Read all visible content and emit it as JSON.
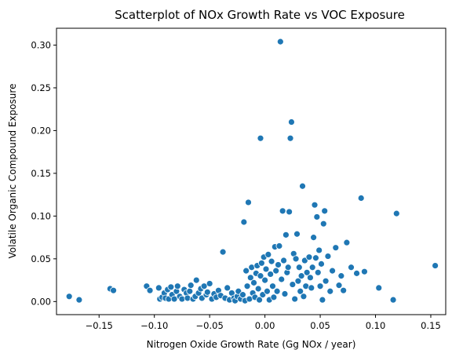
{
  "chart_data": {
    "type": "scatter",
    "title": "Scatterplot of NOx Growth Rate vs VOC Exposure",
    "xlabel": "Nitrogen Oxide Growth Rate (Gg NOx / year)",
    "ylabel": "Volatile Organic Compound Exposure",
    "xlim": [
      -0.1885,
      0.1635
    ],
    "ylim": [
      -0.0153,
      0.3197
    ],
    "xticks": [
      {
        "value": -0.15,
        "label": "−0.15"
      },
      {
        "value": -0.1,
        "label": "−0.10"
      },
      {
        "value": -0.05,
        "label": "−0.05"
      },
      {
        "value": 0.0,
        "label": "0.00"
      },
      {
        "value": 0.05,
        "label": "0.05"
      },
      {
        "value": 0.1,
        "label": "0.10"
      },
      {
        "value": 0.15,
        "label": "0.15"
      }
    ],
    "yticks": [
      {
        "value": 0.0,
        "label": "0.00"
      },
      {
        "value": 0.05,
        "label": "0.05"
      },
      {
        "value": 0.1,
        "label": "0.10"
      },
      {
        "value": 0.15,
        "label": "0.15"
      },
      {
        "value": 0.2,
        "label": "0.20"
      },
      {
        "value": 0.25,
        "label": "0.25"
      },
      {
        "value": 0.3,
        "label": "0.30"
      }
    ],
    "grid": false,
    "point_color": "#1f77b4",
    "points": [
      [
        -0.177,
        0.006
      ],
      [
        -0.168,
        0.002
      ],
      [
        -0.14,
        0.015
      ],
      [
        -0.137,
        0.013
      ],
      [
        -0.107,
        0.018
      ],
      [
        -0.104,
        0.013
      ],
      [
        -0.096,
        0.016
      ],
      [
        -0.095,
        0.003
      ],
      [
        -0.093,
        0.005
      ],
      [
        -0.091,
        0.01
      ],
      [
        -0.09,
        0.004
      ],
      [
        -0.088,
        0.014
      ],
      [
        -0.087,
        0.003
      ],
      [
        -0.085,
        0.017
      ],
      [
        -0.084,
        0.008
      ],
      [
        -0.082,
        0.003
      ],
      [
        -0.08,
        0.012
      ],
      [
        -0.079,
        0.018
      ],
      [
        -0.077,
        0.006
      ],
      [
        -0.075,
        0.003
      ],
      [
        -0.073,
        0.014
      ],
      [
        -0.071,
        0.01
      ],
      [
        -0.07,
        0.004
      ],
      [
        -0.068,
        0.012
      ],
      [
        -0.067,
        0.019
      ],
      [
        -0.065,
        0.003
      ],
      [
        -0.063,
        0.006
      ],
      [
        -0.062,
        0.025
      ],
      [
        -0.06,
        0.01
      ],
      [
        -0.058,
        0.015
      ],
      [
        -0.057,
        0.004
      ],
      [
        -0.055,
        0.018
      ],
      [
        -0.053,
        0.008
      ],
      [
        -0.052,
        0.011
      ],
      [
        -0.05,
        0.021
      ],
      [
        -0.048,
        0.003
      ],
      [
        -0.046,
        0.009
      ],
      [
        -0.044,
        0.005
      ],
      [
        -0.042,
        0.013
      ],
      [
        -0.04,
        0.007
      ],
      [
        -0.038,
        0.058
      ],
      [
        -0.036,
        0.004
      ],
      [
        -0.034,
        0.016
      ],
      [
        -0.032,
        0.002
      ],
      [
        -0.03,
        0.01
      ],
      [
        -0.028,
        0.004
      ],
      [
        -0.027,
        0.001
      ],
      [
        -0.025,
        0.006
      ],
      [
        -0.024,
        0.012
      ],
      [
        -0.022,
        0.003
      ],
      [
        -0.02,
        0.008
      ],
      [
        -0.019,
        0.093
      ],
      [
        -0.018,
        0.001
      ],
      [
        -0.017,
        0.036
      ],
      [
        -0.016,
        0.018
      ],
      [
        -0.015,
        0.116
      ],
      [
        -0.014,
        0.003
      ],
      [
        -0.013,
        0.028
      ],
      [
        -0.012,
        0.04
      ],
      [
        -0.011,
        0.01
      ],
      [
        -0.01,
        0.022
      ],
      [
        -0.009,
        0.005
      ],
      [
        -0.008,
        0.033
      ],
      [
        -0.007,
        0.042
      ],
      [
        -0.006,
        0.015
      ],
      [
        -0.005,
        0.002
      ],
      [
        -0.004,
        0.191
      ],
      [
        -0.004,
        0.03
      ],
      [
        -0.003,
        0.045
      ],
      [
        -0.002,
        0.008
      ],
      [
        -0.001,
        0.052
      ],
      [
        0.0,
        0.025
      ],
      [
        0.001,
        0.038
      ],
      [
        0.002,
        0.012
      ],
      [
        0.003,
        0.055
      ],
      [
        0.004,
        0.002
      ],
      [
        0.005,
        0.032
      ],
      [
        0.006,
        0.047
      ],
      [
        0.007,
        0.018
      ],
      [
        0.008,
        0.005
      ],
      [
        0.009,
        0.064
      ],
      [
        0.01,
        0.036
      ],
      [
        0.011,
        0.012
      ],
      [
        0.012,
        0.043
      ],
      [
        0.013,
        0.065
      ],
      [
        0.014,
        0.304
      ],
      [
        0.015,
        0.026
      ],
      [
        0.016,
        0.106
      ],
      [
        0.017,
        0.048
      ],
      [
        0.018,
        0.009
      ],
      [
        0.019,
        0.078
      ],
      [
        0.02,
        0.034
      ],
      [
        0.021,
        0.04
      ],
      [
        0.022,
        0.105
      ],
      [
        0.023,
        0.191
      ],
      [
        0.024,
        0.21
      ],
      [
        0.025,
        0.02
      ],
      [
        0.026,
        0.056
      ],
      [
        0.027,
        0.003
      ],
      [
        0.028,
        0.05
      ],
      [
        0.029,
        0.079
      ],
      [
        0.03,
        0.024
      ],
      [
        0.031,
        0.04
      ],
      [
        0.032,
        0.012
      ],
      [
        0.033,
        0.03
      ],
      [
        0.034,
        0.135
      ],
      [
        0.035,
        0.006
      ],
      [
        0.036,
        0.048
      ],
      [
        0.037,
        0.018
      ],
      [
        0.038,
        0.034
      ],
      [
        0.04,
        0.052
      ],
      [
        0.041,
        0.028
      ],
      [
        0.042,
        0.016
      ],
      [
        0.043,
        0.04
      ],
      [
        0.044,
        0.075
      ],
      [
        0.045,
        0.113
      ],
      [
        0.046,
        0.051
      ],
      [
        0.047,
        0.099
      ],
      [
        0.048,
        0.034
      ],
      [
        0.049,
        0.06
      ],
      [
        0.05,
        0.018
      ],
      [
        0.051,
        0.044
      ],
      [
        0.052,
        0.002
      ],
      [
        0.053,
        0.091
      ],
      [
        0.054,
        0.106
      ],
      [
        0.055,
        0.024
      ],
      [
        0.057,
        0.053
      ],
      [
        0.059,
        0.012
      ],
      [
        0.061,
        0.036
      ],
      [
        0.064,
        0.063
      ],
      [
        0.067,
        0.019
      ],
      [
        0.069,
        0.03
      ],
      [
        0.071,
        0.013
      ],
      [
        0.074,
        0.069
      ],
      [
        0.078,
        0.04
      ],
      [
        0.083,
        0.033
      ],
      [
        0.087,
        0.121
      ],
      [
        0.09,
        0.035
      ],
      [
        0.103,
        0.016
      ],
      [
        0.116,
        0.002
      ],
      [
        0.119,
        0.103
      ],
      [
        0.154,
        0.042
      ]
    ]
  }
}
